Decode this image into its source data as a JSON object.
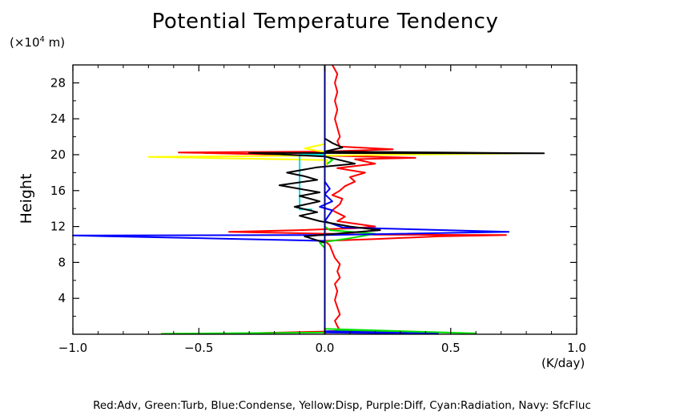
{
  "chart_data": {
    "type": "line",
    "title": "Potential Temperature Tendency",
    "ylabel": "Height",
    "y_unit_prefix": "(×10",
    "y_unit_exp": "4",
    "y_unit_suffix": " m)",
    "xunit": "(K/day)",
    "footer": "Red:Adv, Green:Turb, Blue:Condense, Yellow:Disp, Purple:Diff, Cyan:Radiation, Navy: SfcFluc",
    "xlim": [
      -1.0,
      1.0
    ],
    "ylim": [
      0,
      30
    ],
    "x_ticks": [
      "−1.0",
      "−0.5",
      "0.0",
      "0.5",
      "1.0"
    ],
    "x_tick_values": [
      -1.0,
      -0.5,
      0.0,
      0.5,
      1.0
    ],
    "y_ticks": [
      "4",
      "8",
      "12",
      "16",
      "20",
      "24",
      "28"
    ],
    "y_tick_values": [
      4,
      8,
      12,
      16,
      20,
      24,
      28
    ],
    "series": [
      {
        "color": "#ff0000",
        "points": [
          [
            -0.38,
            0.05
          ],
          [
            0.0,
            0.3
          ],
          [
            0.06,
            0.4
          ],
          [
            0.05,
            0.9
          ],
          [
            0.04,
            1.5
          ],
          [
            0.06,
            2.2
          ],
          [
            0.05,
            3.0
          ],
          [
            0.04,
            3.8
          ],
          [
            0.05,
            4.8
          ],
          [
            0.04,
            5.6
          ],
          [
            0.06,
            6.3
          ],
          [
            0.05,
            7.0
          ],
          [
            0.06,
            7.8
          ],
          [
            0.04,
            8.5
          ],
          [
            0.03,
            9.2
          ],
          [
            0.02,
            9.9
          ],
          [
            0.0,
            10.4
          ],
          [
            0.2,
            10.6
          ],
          [
            0.45,
            10.9
          ],
          [
            0.72,
            11.05
          ],
          [
            0.2,
            11.1
          ],
          [
            -0.38,
            11.4
          ],
          [
            -0.1,
            11.6
          ],
          [
            0.12,
            11.8
          ],
          [
            0.2,
            12.0
          ],
          [
            0.05,
            12.6
          ],
          [
            0.08,
            13.1
          ],
          [
            0.03,
            13.8
          ],
          [
            0.06,
            14.5
          ],
          [
            0.07,
            15.1
          ],
          [
            0.03,
            15.5
          ],
          [
            0.06,
            16.0
          ],
          [
            0.08,
            16.5
          ],
          [
            0.12,
            17.0
          ],
          [
            0.1,
            17.5
          ],
          [
            0.16,
            18.0
          ],
          [
            0.05,
            18.5
          ],
          [
            0.2,
            19.0
          ],
          [
            0.12,
            19.5
          ],
          [
            0.36,
            19.65
          ],
          [
            0.0,
            19.9
          ],
          [
            -0.58,
            20.25
          ],
          [
            0.0,
            20.35
          ],
          [
            0.27,
            20.6
          ],
          [
            0.06,
            20.9
          ],
          [
            0.05,
            21.5
          ],
          [
            0.06,
            22.0
          ],
          [
            0.05,
            23.0
          ],
          [
            0.04,
            24.0
          ],
          [
            0.05,
            25.0
          ],
          [
            0.04,
            26.0
          ],
          [
            0.05,
            27.0
          ],
          [
            0.04,
            28.0
          ],
          [
            0.05,
            29.0
          ],
          [
            0.03,
            30.0
          ]
        ]
      },
      {
        "color": "#00e000",
        "points": [
          [
            -0.65,
            0.05
          ],
          [
            0.0,
            0.2
          ],
          [
            0.05,
            0.4
          ],
          [
            0.3,
            0.3
          ],
          [
            0.6,
            0.1
          ],
          [
            0.0,
            0.6
          ],
          [
            0.0,
            9.6
          ],
          [
            -0.02,
            10.2
          ],
          [
            0.1,
            10.7
          ],
          [
            0.2,
            11.2
          ],
          [
            0.02,
            11.6
          ],
          [
            0.0,
            12.0
          ],
          [
            0.0,
            18.8
          ],
          [
            0.03,
            19.4
          ],
          [
            0.0,
            20.0
          ],
          [
            0.0,
            30.0
          ]
        ]
      },
      {
        "color": "#0000ff",
        "points": [
          [
            0.0,
            0.2
          ],
          [
            0.45,
            0.05
          ],
          [
            0.0,
            0.35
          ],
          [
            0.0,
            9.8
          ],
          [
            0.0,
            10.4
          ],
          [
            -1.0,
            11.0
          ],
          [
            0.0,
            11.05
          ],
          [
            0.73,
            11.4
          ],
          [
            0.07,
            11.9
          ],
          [
            0.0,
            12.6
          ],
          [
            0.03,
            13.8
          ],
          [
            -0.02,
            14.2
          ],
          [
            0.03,
            14.8
          ],
          [
            0.0,
            15.6
          ],
          [
            0.02,
            16.2
          ],
          [
            0.0,
            17.0
          ],
          [
            0.0,
            30.0
          ]
        ]
      },
      {
        "color": "#ffff00",
        "points": [
          [
            0.0,
            18.5
          ],
          [
            0.01,
            19.4
          ],
          [
            -0.7,
            19.75
          ],
          [
            0.0,
            19.9
          ],
          [
            0.78,
            20.15
          ],
          [
            0.0,
            20.3
          ],
          [
            -0.08,
            20.7
          ],
          [
            0.0,
            21.2
          ],
          [
            0.0,
            30.0
          ]
        ]
      },
      {
        "color": "#00e0e0",
        "points": [
          [
            -0.05,
            13.9
          ],
          [
            -0.1,
            13.9
          ],
          [
            -0.1,
            20.0
          ],
          [
            0.0,
            20.0
          ]
        ]
      },
      {
        "color": "#000000",
        "points": [
          [
            0.0,
            10.2
          ],
          [
            -0.08,
            10.9
          ],
          [
            0.0,
            11.1
          ],
          [
            0.22,
            11.6
          ],
          [
            0.1,
            12.0
          ],
          [
            -0.02,
            12.6
          ],
          [
            -0.1,
            13.2
          ],
          [
            -0.03,
            13.6
          ],
          [
            -0.12,
            14.2
          ],
          [
            -0.02,
            14.8
          ],
          [
            -0.1,
            15.4
          ],
          [
            -0.02,
            15.8
          ],
          [
            -0.18,
            16.6
          ],
          [
            -0.03,
            17.2
          ],
          [
            -0.08,
            17.6
          ],
          [
            -0.15,
            18.0
          ],
          [
            -0.03,
            18.6
          ],
          [
            0.12,
            19.0
          ],
          [
            0.0,
            19.8
          ],
          [
            -0.3,
            20.2
          ],
          [
            0.87,
            20.15
          ],
          [
            0.0,
            20.35
          ],
          [
            0.07,
            20.8
          ],
          [
            0.03,
            21.3
          ],
          [
            0.0,
            21.8
          ],
          [
            0.0,
            30.0
          ]
        ]
      },
      {
        "color": "#000080",
        "points": [
          [
            0.0,
            0.0
          ],
          [
            0.0,
            30.0
          ]
        ]
      }
    ]
  }
}
